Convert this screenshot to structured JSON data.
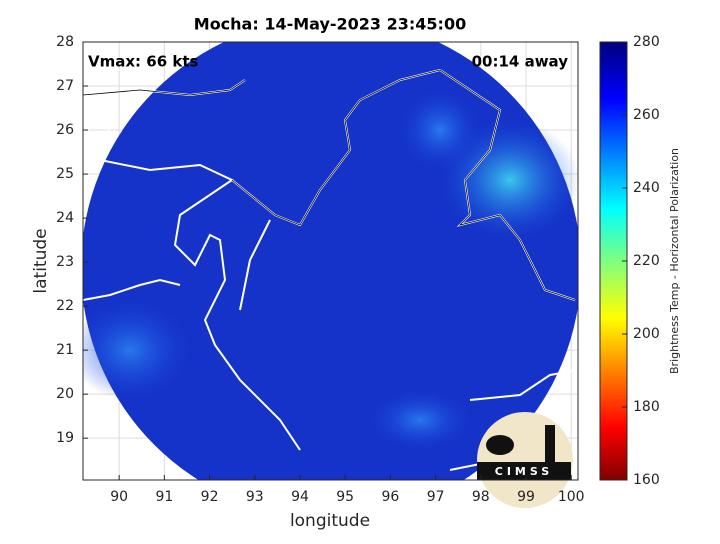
{
  "map": {
    "title": "Mocha: 14-May-2023 23:45:00",
    "xlabel": "longitude",
    "ylabel": "latitude",
    "xlim": [
      89.2,
      100.15
    ],
    "xticks": [
      90,
      91,
      92,
      93,
      94,
      95,
      96,
      97,
      98,
      99,
      100
    ],
    "ylim": [
      18.05,
      28
    ],
    "yticks": [
      19,
      20,
      21,
      22,
      23,
      24,
      25,
      26,
      27,
      28
    ],
    "grid": true,
    "annotations": {
      "vmax": "Vmax: 66 kts",
      "away": "00:14 away"
    },
    "colorbar": {
      "label": "Brightness Temp - Horizontal Polarization",
      "lim": [
        160,
        280
      ],
      "ticks": [
        160,
        180,
        200,
        220,
        240,
        260,
        280
      ]
    },
    "logo": "CIMSS"
  }
}
